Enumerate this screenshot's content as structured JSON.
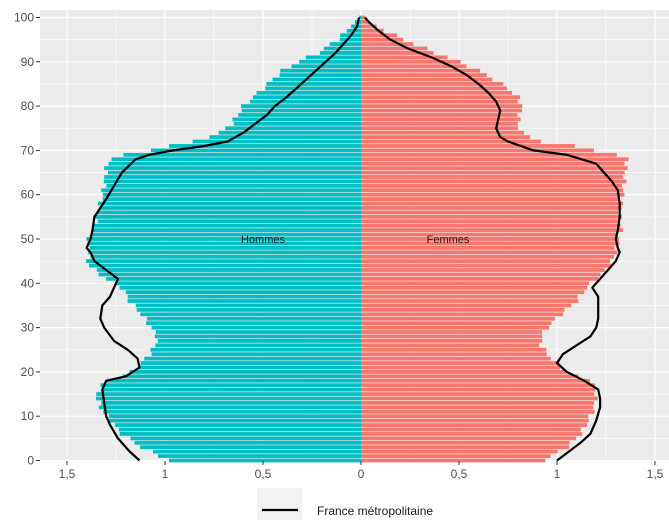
{
  "chart_data": {
    "type": "bar",
    "orientation": "horizontal-population-pyramid",
    "ylim": [
      0,
      100
    ],
    "xlim_each_side": [
      0,
      1.5
    ],
    "y_ticks": [
      {
        "value": 0,
        "label": "0"
      },
      {
        "value": 10,
        "label": "10"
      },
      {
        "value": 20,
        "label": "20"
      },
      {
        "value": 30,
        "label": "30"
      },
      {
        "value": 40,
        "label": "40"
      },
      {
        "value": 50,
        "label": "50"
      },
      {
        "value": 60,
        "label": "60"
      },
      {
        "value": 70,
        "label": "70"
      },
      {
        "value": 80,
        "label": "80"
      },
      {
        "value": 90,
        "label": "90"
      },
      {
        "value": 100,
        "label": "100"
      }
    ],
    "x_ticks": [
      {
        "value": -1.5,
        "label": "1,5"
      },
      {
        "value": -1,
        "label": "1"
      },
      {
        "value": -0.5,
        "label": "0,5"
      },
      {
        "value": 0,
        "label": "0"
      },
      {
        "value": 0.5,
        "label": "0,5"
      },
      {
        "value": 1,
        "label": "1"
      },
      {
        "value": 1.5,
        "label": "1,5"
      }
    ],
    "grid": true,
    "panel_labels": {
      "left": "Hommes",
      "right": "Femmes"
    },
    "colors": {
      "hommes": "#00BFC4",
      "femmes": "#F8766D",
      "reference_line": "#000000",
      "panel_bg": "#EBEBEB",
      "grid": "#FFFFFF"
    },
    "series": [
      {
        "name": "Hommes",
        "side": "left",
        "knots_age": [
          0,
          3,
          6,
          9,
          12,
          15,
          18,
          19,
          20,
          22,
          24,
          26,
          28,
          30,
          33,
          36,
          39,
          41,
          43,
          45,
          47,
          49,
          51,
          53,
          55,
          58,
          62,
          66,
          68,
          69,
          70,
          71,
          72,
          74,
          76,
          78,
          80,
          82,
          84,
          86,
          88,
          90,
          92,
          95,
          98,
          99,
          100
        ],
        "knots_value": [
          0.98,
          1.12,
          1.22,
          1.28,
          1.33,
          1.35,
          1.3,
          1.22,
          1.17,
          1.12,
          1.08,
          1.05,
          1.04,
          1.07,
          1.12,
          1.18,
          1.22,
          1.3,
          1.36,
          1.4,
          1.38,
          1.4,
          1.38,
          1.36,
          1.35,
          1.33,
          1.31,
          1.3,
          1.28,
          1.2,
          1.08,
          0.98,
          0.85,
          0.72,
          0.66,
          0.63,
          0.6,
          0.55,
          0.5,
          0.45,
          0.4,
          0.32,
          0.22,
          0.12,
          0.05,
          0.03,
          0.01
        ]
      },
      {
        "name": "Femmes",
        "side": "right",
        "knots_age": [
          0,
          3,
          6,
          9,
          12,
          15,
          18,
          19,
          20,
          22,
          24,
          26,
          28,
          30,
          33,
          36,
          39,
          41,
          43,
          45,
          47,
          49,
          51,
          53,
          55,
          58,
          62,
          66,
          68,
          69,
          70,
          71,
          72,
          74,
          76,
          78,
          80,
          82,
          84,
          86,
          88,
          90,
          92,
          95,
          98,
          99,
          100
        ],
        "knots_value": [
          0.93,
          1.05,
          1.12,
          1.16,
          1.19,
          1.2,
          1.18,
          1.1,
          1.05,
          1.0,
          0.95,
          0.92,
          0.92,
          0.95,
          1.02,
          1.1,
          1.15,
          1.2,
          1.25,
          1.28,
          1.3,
          1.31,
          1.32,
          1.33,
          1.32,
          1.33,
          1.34,
          1.35,
          1.36,
          1.3,
          1.2,
          1.08,
          0.92,
          0.82,
          0.8,
          0.81,
          0.82,
          0.8,
          0.75,
          0.68,
          0.6,
          0.5,
          0.38,
          0.22,
          0.08,
          0.04,
          0.02
        ]
      }
    ],
    "reference_series": {
      "name": "France métropolitaine",
      "left_points": [
        [
          0,
          1.13
        ],
        [
          2,
          1.18
        ],
        [
          5,
          1.24
        ],
        [
          8,
          1.28
        ],
        [
          10,
          1.3
        ],
        [
          13,
          1.31
        ],
        [
          16,
          1.32
        ],
        [
          18,
          1.3
        ],
        [
          19,
          1.2
        ],
        [
          21,
          1.13
        ],
        [
          23,
          1.14
        ],
        [
          25,
          1.19
        ],
        [
          27,
          1.26
        ],
        [
          30,
          1.31
        ],
        [
          32,
          1.33
        ],
        [
          35,
          1.32
        ],
        [
          37,
          1.28
        ],
        [
          39,
          1.26
        ],
        [
          41,
          1.24
        ],
        [
          43,
          1.3
        ],
        [
          45,
          1.36
        ],
        [
          47,
          1.38
        ],
        [
          48,
          1.4
        ],
        [
          50,
          1.38
        ],
        [
          52,
          1.37
        ],
        [
          55,
          1.36
        ],
        [
          57,
          1.33
        ],
        [
          59,
          1.3
        ],
        [
          62,
          1.26
        ],
        [
          65,
          1.22
        ],
        [
          68,
          1.15
        ],
        [
          69,
          1.08
        ],
        [
          70,
          0.96
        ],
        [
          71,
          0.8
        ],
        [
          72,
          0.68
        ],
        [
          74,
          0.6
        ],
        [
          76,
          0.54
        ],
        [
          78,
          0.48
        ],
        [
          80,
          0.44
        ],
        [
          82,
          0.38
        ],
        [
          84,
          0.33
        ],
        [
          86,
          0.28
        ],
        [
          88,
          0.23
        ],
        [
          90,
          0.18
        ],
        [
          92,
          0.13
        ],
        [
          94,
          0.09
        ],
        [
          96,
          0.05
        ],
        [
          98,
          0.02
        ],
        [
          100,
          0.01
        ]
      ],
      "right_points": [
        [
          0,
          1.0
        ],
        [
          2,
          1.06
        ],
        [
          4,
          1.12
        ],
        [
          6,
          1.17
        ],
        [
          9,
          1.2
        ],
        [
          12,
          1.22
        ],
        [
          14,
          1.22
        ],
        [
          16,
          1.21
        ],
        [
          18,
          1.14
        ],
        [
          20,
          1.05
        ],
        [
          22,
          1.0
        ],
        [
          24,
          1.03
        ],
        [
          26,
          1.1
        ],
        [
          28,
          1.17
        ],
        [
          30,
          1.2
        ],
        [
          32,
          1.21
        ],
        [
          35,
          1.21
        ],
        [
          37,
          1.21
        ],
        [
          39,
          1.18
        ],
        [
          41,
          1.22
        ],
        [
          43,
          1.26
        ],
        [
          45,
          1.3
        ],
        [
          47,
          1.32
        ],
        [
          48,
          1.31
        ],
        [
          50,
          1.3
        ],
        [
          52,
          1.31
        ],
        [
          55,
          1.32
        ],
        [
          58,
          1.32
        ],
        [
          61,
          1.31
        ],
        [
          63,
          1.28
        ],
        [
          65,
          1.24
        ],
        [
          67,
          1.2
        ],
        [
          69,
          1.05
        ],
        [
          70,
          0.88
        ],
        [
          72,
          0.75
        ],
        [
          73,
          0.71
        ],
        [
          75,
          0.69
        ],
        [
          77,
          0.7
        ],
        [
          79,
          0.71
        ],
        [
          81,
          0.69
        ],
        [
          83,
          0.65
        ],
        [
          85,
          0.6
        ],
        [
          87,
          0.54
        ],
        [
          89,
          0.46
        ],
        [
          91,
          0.36
        ],
        [
          93,
          0.24
        ],
        [
          95,
          0.15
        ],
        [
          97,
          0.09
        ],
        [
          99,
          0.04
        ],
        [
          100,
          0.02
        ]
      ]
    },
    "legend": {
      "position": "bottom",
      "label": "France métropolitaine"
    }
  }
}
